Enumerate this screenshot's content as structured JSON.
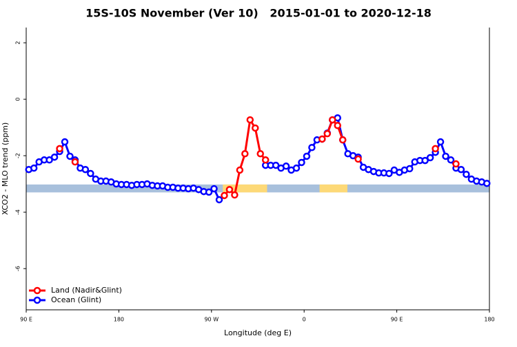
{
  "chart_data": {
    "type": "line",
    "title": "15S-10S November (Ver 10)   2015-01-01 to 2020-12-18",
    "x_label": "Longitude (deg E)",
    "y_label": "XCO2 - MLO trend (ppm)",
    "xlim": [
      90,
      540
    ],
    "xticks": [
      {
        "value": 90,
        "label": "90 E"
      },
      180,
      {
        "value": 270,
        "label": "90 W"
      },
      {
        "value": 360,
        "label": "0"
      },
      {
        "value": 450,
        "label": "90 E"
      },
      {
        "value": 540,
        "label": "180"
      }
    ],
    "ylim": [
      -7.46,
      2.54
    ],
    "yticks": [
      -6,
      -4,
      -2,
      0,
      2
    ],
    "legend": "bottom-left",
    "band_ylim": [
      -3.3,
      -3.02
    ],
    "band_color": "#a8c0dc",
    "land_color": "#fdd977",
    "land_regions": [
      [
        281,
        324
      ],
      [
        375,
        402
      ]
    ],
    "x": [
      92.5,
      97.5,
      102.5,
      107.5,
      112.5,
      117.5,
      122.5,
      127.5,
      132.5,
      137.5,
      142.5,
      147.5,
      152.5,
      157.5,
      162.5,
      167.5,
      172.5,
      177.5,
      182.5,
      187.5,
      192.5,
      197.5,
      202.5,
      207.5,
      212.5,
      217.5,
      222.5,
      227.5,
      232.5,
      237.5,
      242.5,
      247.5,
      252.5,
      257.5,
      262.5,
      267.5,
      272.5,
      277.5,
      282.5,
      287.5,
      292.5,
      297.5,
      302.5,
      307.5,
      312.5,
      317.5,
      322.5,
      327.5,
      332.5,
      337.5,
      342.5,
      347.5,
      352.5,
      357.5,
      362.5,
      367.5,
      372.5,
      377.5,
      382.5,
      387.5,
      392.5,
      397.5,
      402.5,
      407.5,
      412.5,
      417.5,
      422.5,
      427.5,
      432.5,
      437.5,
      442.5,
      447.5,
      452.5,
      457.5,
      462.5,
      467.5,
      472.5,
      477.5,
      482.5,
      487.5,
      492.5,
      497.5,
      502.5,
      507.5,
      512.5,
      517.5,
      522.5,
      527.5,
      532.5,
      537.5
    ],
    "series": [
      {
        "name": "Ocean (Glint)",
        "color": "#0000ff",
        "values": [
          -2.49,
          -2.44,
          -2.22,
          -2.15,
          -2.15,
          -2.05,
          -1.85,
          -1.51,
          -2.02,
          -2.15,
          -2.44,
          -2.49,
          -2.63,
          -2.83,
          -2.9,
          -2.9,
          -2.93,
          -3.0,
          -3.02,
          -3.02,
          -3.05,
          -3.02,
          -3.02,
          -3.0,
          -3.05,
          -3.07,
          -3.07,
          -3.12,
          -3.12,
          -3.15,
          -3.15,
          -3.17,
          -3.15,
          -3.2,
          -3.27,
          -3.29,
          -3.17,
          -3.56,
          null,
          null,
          null,
          null,
          null,
          null,
          null,
          null,
          -2.34,
          -2.34,
          -2.34,
          -2.44,
          -2.37,
          -2.51,
          -2.44,
          -2.24,
          -2.02,
          -1.71,
          -1.44,
          -1.41,
          -1.2,
          -0.73,
          -0.66,
          -1.44,
          -1.93,
          -2.0,
          -2.05,
          -2.41,
          -2.49,
          -2.56,
          -2.61,
          -2.61,
          -2.63,
          -2.51,
          -2.59,
          -2.51,
          -2.46,
          -2.22,
          -2.17,
          -2.17,
          -2.07,
          -1.88,
          -1.51,
          -2.02,
          -2.15,
          -2.44,
          -2.49,
          -2.66,
          -2.83,
          -2.9,
          -2.93,
          -2.98
        ]
      },
      {
        "name": "Land (Nadir&Glint)",
        "color": "#ff0000",
        "values": [
          null,
          null,
          null,
          null,
          null,
          null,
          -1.75,
          null,
          null,
          -2.22,
          null,
          null,
          null,
          null,
          null,
          null,
          null,
          null,
          null,
          null,
          null,
          null,
          null,
          null,
          null,
          null,
          null,
          null,
          null,
          null,
          null,
          null,
          null,
          null,
          null,
          null,
          null,
          null,
          -3.41,
          -3.2,
          -3.39,
          -2.51,
          -1.93,
          -0.73,
          -1.02,
          -1.93,
          -2.15,
          null,
          null,
          null,
          null,
          null,
          null,
          null,
          null,
          null,
          null,
          -1.41,
          -1.22,
          -0.73,
          -0.93,
          -1.44,
          null,
          null,
          -2.12,
          null,
          null,
          null,
          null,
          null,
          null,
          null,
          null,
          null,
          null,
          null,
          null,
          null,
          null,
          -1.75,
          null,
          null,
          null,
          -2.29,
          null,
          null,
          null,
          null,
          null,
          null
        ]
      }
    ]
  }
}
